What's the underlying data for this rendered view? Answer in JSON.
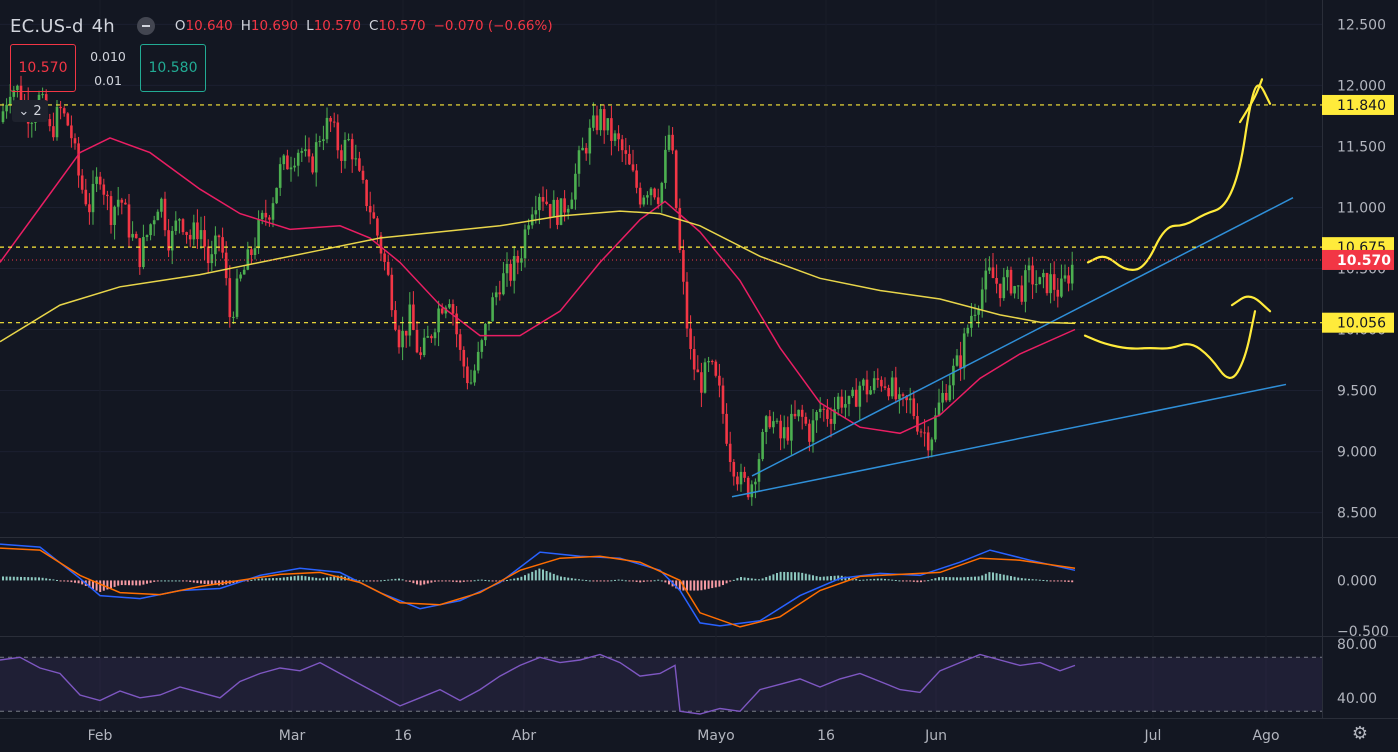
{
  "header": {
    "symbol": "EC.US-d",
    "interval": "4h",
    "open_label": "O",
    "open": "10.640",
    "high_label": "H",
    "high": "10.690",
    "low_label": "L",
    "low": "10.570",
    "close_label": "C",
    "close": "10.570",
    "change": "−0.070 (−0.66%)"
  },
  "trade": {
    "sell": "10.570",
    "buy": "10.580",
    "spread_top": "0.010",
    "spread_bottom": "0.01"
  },
  "collapse_count": "2",
  "icons": {
    "settings": "gear-icon",
    "collapse": "chevron-down-icon"
  },
  "colors": {
    "background": "#131722",
    "up": "#22ab94",
    "down": "#f23645",
    "up_candle": "#4caf50",
    "ma_fast": "#e91e63",
    "ma_slow": "#e8d54a",
    "trendline": "#2f8fd8",
    "drawing": "#ffeb3b",
    "macd": "#2962ff",
    "signal": "#ff6d00",
    "rsi": "#7e57c2"
  },
  "chart_data": [
    {
      "type": "candlestick",
      "ylim": [
        8.3,
        12.7
      ],
      "yticks": [
        "12.500",
        "12.000",
        "11.500",
        "11.000",
        "10.500",
        "10.000",
        "9.500",
        "9.000",
        "8.500"
      ],
      "xticks": [
        "Feb",
        "Mar",
        "16",
        "Abr",
        "Mayo",
        "16",
        "Jun",
        "Jul",
        "Ago"
      ],
      "close_path": [
        [
          0,
          11.7
        ],
        [
          10,
          12.0
        ],
        [
          20,
          11.95
        ],
        [
          30,
          11.75
        ],
        [
          40,
          11.9
        ],
        [
          50,
          11.6
        ],
        [
          60,
          11.8
        ],
        [
          70,
          11.65
        ],
        [
          80,
          11.2
        ],
        [
          90,
          11.0
        ],
        [
          100,
          11.3
        ],
        [
          110,
          10.95
        ],
        [
          120,
          11.1
        ],
        [
          130,
          10.8
        ],
        [
          140,
          10.6
        ],
        [
          150,
          10.85
        ],
        [
          160,
          11.1
        ],
        [
          170,
          10.7
        ],
        [
          180,
          10.95
        ],
        [
          190,
          10.75
        ],
        [
          200,
          10.85
        ],
        [
          210,
          10.5
        ],
        [
          220,
          10.8
        ],
        [
          230,
          10.1
        ],
        [
          240,
          10.4
        ],
        [
          250,
          10.6
        ],
        [
          260,
          10.85
        ],
        [
          270,
          11.0
        ],
        [
          280,
          11.3
        ],
        [
          290,
          11.4
        ],
        [
          300,
          11.5
        ],
        [
          310,
          11.3
        ],
        [
          320,
          11.6
        ],
        [
          330,
          11.7
        ],
        [
          340,
          11.45
        ],
        [
          350,
          11.55
        ],
        [
          360,
          11.2
        ],
        [
          370,
          11.0
        ],
        [
          380,
          10.7
        ],
        [
          390,
          10.35
        ],
        [
          400,
          9.9
        ],
        [
          410,
          10.1
        ],
        [
          420,
          9.75
        ],
        [
          430,
          9.95
        ],
        [
          440,
          10.2
        ],
        [
          450,
          10.3
        ],
        [
          460,
          9.8
        ],
        [
          470,
          9.55
        ],
        [
          480,
          9.8
        ],
        [
          490,
          10.15
        ],
        [
          500,
          10.4
        ],
        [
          510,
          10.45
        ],
        [
          520,
          10.6
        ],
        [
          530,
          11.0
        ],
        [
          540,
          11.15
        ],
        [
          550,
          11.0
        ],
        [
          560,
          10.95
        ],
        [
          570,
          11.1
        ],
        [
          580,
          11.4
        ],
        [
          590,
          11.6
        ],
        [
          600,
          11.75
        ],
        [
          610,
          11.6
        ],
        [
          620,
          11.5
        ],
        [
          630,
          11.3
        ],
        [
          640,
          11.1
        ],
        [
          650,
          11.2
        ],
        [
          660,
          11.1
        ],
        [
          670,
          11.65
        ],
        [
          680,
          10.6
        ],
        [
          690,
          9.8
        ],
        [
          700,
          9.55
        ],
        [
          710,
          9.7
        ],
        [
          720,
          9.45
        ],
        [
          730,
          9.0
        ],
        [
          740,
          8.75
        ],
        [
          750,
          8.7
        ],
        [
          760,
          9.0
        ],
        [
          770,
          9.3
        ],
        [
          780,
          9.1
        ],
        [
          790,
          9.2
        ],
        [
          800,
          9.3
        ],
        [
          810,
          9.15
        ],
        [
          820,
          9.35
        ],
        [
          830,
          9.3
        ],
        [
          840,
          9.45
        ],
        [
          850,
          9.35
        ],
        [
          860,
          9.55
        ],
        [
          870,
          9.5
        ],
        [
          880,
          9.6
        ],
        [
          890,
          9.55
        ],
        [
          900,
          9.35
        ],
        [
          910,
          9.4
        ],
        [
          920,
          9.2
        ],
        [
          930,
          9.1
        ],
        [
          940,
          9.4
        ],
        [
          950,
          9.6
        ],
        [
          960,
          9.75
        ],
        [
          970,
          10.1
        ],
        [
          980,
          10.3
        ],
        [
          990,
          10.45
        ],
        [
          1000,
          10.35
        ],
        [
          1010,
          10.4
        ],
        [
          1020,
          10.3
        ],
        [
          1030,
          10.45
        ],
        [
          1040,
          10.35
        ],
        [
          1050,
          10.4
        ],
        [
          1060,
          10.3
        ],
        [
          1075,
          10.57
        ]
      ],
      "ma_fast": [
        [
          0,
          10.55
        ],
        [
          40,
          11.0
        ],
        [
          80,
          11.45
        ],
        [
          110,
          11.57
        ],
        [
          150,
          11.45
        ],
        [
          200,
          11.15
        ],
        [
          240,
          10.95
        ],
        [
          290,
          10.82
        ],
        [
          340,
          10.85
        ],
        [
          370,
          10.75
        ],
        [
          400,
          10.55
        ],
        [
          440,
          10.2
        ],
        [
          480,
          9.95
        ],
        [
          520,
          9.95
        ],
        [
          560,
          10.15
        ],
        [
          600,
          10.55
        ],
        [
          640,
          10.9
        ],
        [
          665,
          11.05
        ],
        [
          700,
          10.8
        ],
        [
          740,
          10.4
        ],
        [
          780,
          9.85
        ],
        [
          820,
          9.4
        ],
        [
          860,
          9.2
        ],
        [
          900,
          9.15
        ],
        [
          940,
          9.3
        ],
        [
          980,
          9.6
        ],
        [
          1020,
          9.8
        ],
        [
          1075,
          10.0
        ]
      ],
      "ma_slow": [
        [
          0,
          9.9
        ],
        [
          60,
          10.2
        ],
        [
          120,
          10.35
        ],
        [
          200,
          10.45
        ],
        [
          260,
          10.55
        ],
        [
          320,
          10.65
        ],
        [
          380,
          10.75
        ],
        [
          440,
          10.8
        ],
        [
          500,
          10.85
        ],
        [
          560,
          10.93
        ],
        [
          620,
          10.97
        ],
        [
          660,
          10.95
        ],
        [
          700,
          10.85
        ],
        [
          760,
          10.6
        ],
        [
          820,
          10.42
        ],
        [
          880,
          10.32
        ],
        [
          940,
          10.25
        ],
        [
          1000,
          10.12
        ],
        [
          1040,
          10.06
        ],
        [
          1075,
          10.05
        ]
      ],
      "levels": [
        {
          "label": "11.840",
          "value": 11.84,
          "kind": "dashed"
        },
        {
          "label": "10.675",
          "value": 10.675,
          "kind": "dashed"
        },
        {
          "label": "10.570",
          "value": 10.57,
          "kind": "last"
        },
        {
          "label": "10.056",
          "value": 10.056,
          "kind": "dashed"
        }
      ],
      "trendlines": [
        {
          "x": [
            752,
            1293
          ],
          "y": [
            8.8,
            11.08
          ]
        },
        {
          "x": [
            732,
            1286
          ],
          "y": [
            8.63,
            9.55
          ]
        }
      ],
      "scenarios": [
        [
          [
            1088,
            10.55
          ],
          [
            1105,
            10.62
          ],
          [
            1125,
            10.48
          ],
          [
            1145,
            10.5
          ],
          [
            1165,
            10.85
          ],
          [
            1185,
            10.85
          ],
          [
            1205,
            10.95
          ],
          [
            1225,
            11.0
          ],
          [
            1240,
            11.3
          ],
          [
            1250,
            11.85
          ],
          [
            1258,
            12.05
          ],
          [
            1270,
            11.85
          ]
        ],
        [
          [
            1240,
            11.7
          ],
          [
            1255,
            11.9
          ],
          [
            1262,
            12.05
          ]
        ],
        [
          [
            1085,
            9.95
          ],
          [
            1105,
            9.88
          ],
          [
            1130,
            9.84
          ],
          [
            1150,
            9.85
          ],
          [
            1170,
            9.84
          ],
          [
            1190,
            9.9
          ],
          [
            1210,
            9.78
          ],
          [
            1230,
            9.55
          ],
          [
            1245,
            9.75
          ],
          [
            1255,
            10.15
          ]
        ],
        [
          [
            1232,
            10.2
          ],
          [
            1250,
            10.3
          ],
          [
            1270,
            10.15
          ]
        ]
      ]
    },
    {
      "type": "macd",
      "ylim": [
        -0.55,
        0.42
      ],
      "yticks": [
        "0.000",
        "−0.500"
      ],
      "macd": [
        [
          0,
          0.36
        ],
        [
          40,
          0.33
        ],
        [
          80,
          0.02
        ],
        [
          100,
          -0.15
        ],
        [
          140,
          -0.18
        ],
        [
          180,
          -0.1
        ],
        [
          220,
          -0.08
        ],
        [
          260,
          0.05
        ],
        [
          300,
          0.12
        ],
        [
          340,
          0.08
        ],
        [
          380,
          -0.12
        ],
        [
          420,
          -0.28
        ],
        [
          460,
          -0.2
        ],
        [
          500,
          -0.02
        ],
        [
          540,
          0.28
        ],
        [
          580,
          0.24
        ],
        [
          620,
          0.22
        ],
        [
          660,
          0.1
        ],
        [
          680,
          -0.1
        ],
        [
          700,
          -0.42
        ],
        [
          720,
          -0.45
        ],
        [
          760,
          -0.4
        ],
        [
          800,
          -0.15
        ],
        [
          840,
          0.02
        ],
        [
          880,
          0.07
        ],
        [
          920,
          0.05
        ],
        [
          960,
          0.18
        ],
        [
          990,
          0.3
        ],
        [
          1030,
          0.2
        ],
        [
          1075,
          0.1
        ]
      ],
      "signal": [
        [
          0,
          0.32
        ],
        [
          40,
          0.3
        ],
        [
          80,
          0.05
        ],
        [
          120,
          -0.12
        ],
        [
          160,
          -0.14
        ],
        [
          200,
          -0.06
        ],
        [
          240,
          0.0
        ],
        [
          280,
          0.06
        ],
        [
          320,
          0.08
        ],
        [
          360,
          -0.02
        ],
        [
          400,
          -0.22
        ],
        [
          440,
          -0.24
        ],
        [
          480,
          -0.12
        ],
        [
          520,
          0.1
        ],
        [
          560,
          0.22
        ],
        [
          600,
          0.24
        ],
        [
          640,
          0.18
        ],
        [
          680,
          0.0
        ],
        [
          700,
          -0.32
        ],
        [
          740,
          -0.46
        ],
        [
          780,
          -0.36
        ],
        [
          820,
          -0.1
        ],
        [
          860,
          0.04
        ],
        [
          900,
          0.06
        ],
        [
          940,
          0.08
        ],
        [
          980,
          0.22
        ],
        [
          1020,
          0.2
        ],
        [
          1075,
          0.12
        ]
      ]
    },
    {
      "type": "rsi",
      "ylim": [
        25,
        85
      ],
      "yticks": [
        "80.00",
        "40.00"
      ],
      "bands": [
        70,
        30
      ],
      "values": [
        [
          0,
          68
        ],
        [
          20,
          70
        ],
        [
          40,
          62
        ],
        [
          60,
          58
        ],
        [
          80,
          42
        ],
        [
          100,
          38
        ],
        [
          120,
          45
        ],
        [
          140,
          40
        ],
        [
          160,
          42
        ],
        [
          180,
          48
        ],
        [
          200,
          44
        ],
        [
          220,
          40
        ],
        [
          240,
          52
        ],
        [
          260,
          58
        ],
        [
          280,
          62
        ],
        [
          300,
          60
        ],
        [
          320,
          66
        ],
        [
          340,
          58
        ],
        [
          360,
          50
        ],
        [
          380,
          42
        ],
        [
          400,
          34
        ],
        [
          420,
          40
        ],
        [
          440,
          46
        ],
        [
          460,
          38
        ],
        [
          480,
          46
        ],
        [
          500,
          56
        ],
        [
          520,
          64
        ],
        [
          540,
          70
        ],
        [
          560,
          66
        ],
        [
          580,
          68
        ],
        [
          600,
          72
        ],
        [
          620,
          66
        ],
        [
          640,
          56
        ],
        [
          660,
          58
        ],
        [
          675,
          64
        ],
        [
          680,
          30
        ],
        [
          700,
          28
        ],
        [
          720,
          32
        ],
        [
          740,
          30
        ],
        [
          760,
          46
        ],
        [
          780,
          50
        ],
        [
          800,
          54
        ],
        [
          820,
          48
        ],
        [
          840,
          54
        ],
        [
          860,
          58
        ],
        [
          880,
          52
        ],
        [
          900,
          46
        ],
        [
          920,
          44
        ],
        [
          940,
          60
        ],
        [
          960,
          66
        ],
        [
          980,
          72
        ],
        [
          1000,
          68
        ],
        [
          1020,
          64
        ],
        [
          1040,
          66
        ],
        [
          1060,
          60
        ],
        [
          1075,
          64
        ]
      ]
    }
  ]
}
